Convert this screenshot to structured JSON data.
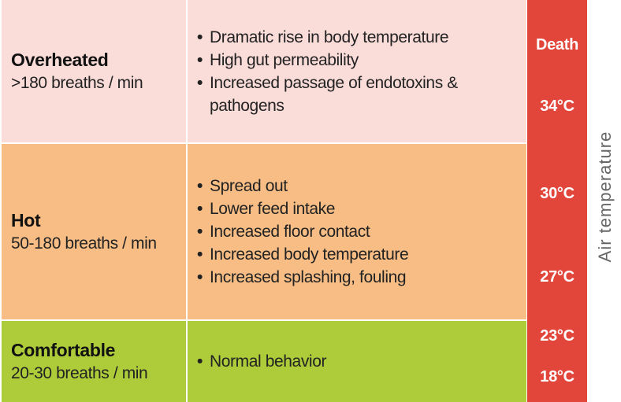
{
  "rows": [
    {
      "title": "Overheated",
      "rate": ">180 breaths / min",
      "effects": [
        "Dramatic rise in body temperature",
        "High gut permeability",
        "Increased passage of endotoxins & pathogens"
      ],
      "color": "#fadcd9"
    },
    {
      "title": "Hot",
      "rate": "50-180 breaths / min",
      "effects": [
        "Spread out",
        "Lower feed intake",
        "Increased floor contact",
        "Increased body temperature",
        "Increased splashing, fouling"
      ],
      "color": "#f7bd85"
    },
    {
      "title": "Comfortable",
      "rate": "20-30 breaths / min",
      "effects": [
        "Normal behavior"
      ],
      "color": "#aecc3a"
    }
  ],
  "temperature_bar": {
    "labels": [
      "Death",
      "34°C",
      "30°C",
      "27°C",
      "23°C",
      "18°C"
    ],
    "axis_label": "Air temperature",
    "color": "#e2453a"
  },
  "bullet_glyph": "•"
}
